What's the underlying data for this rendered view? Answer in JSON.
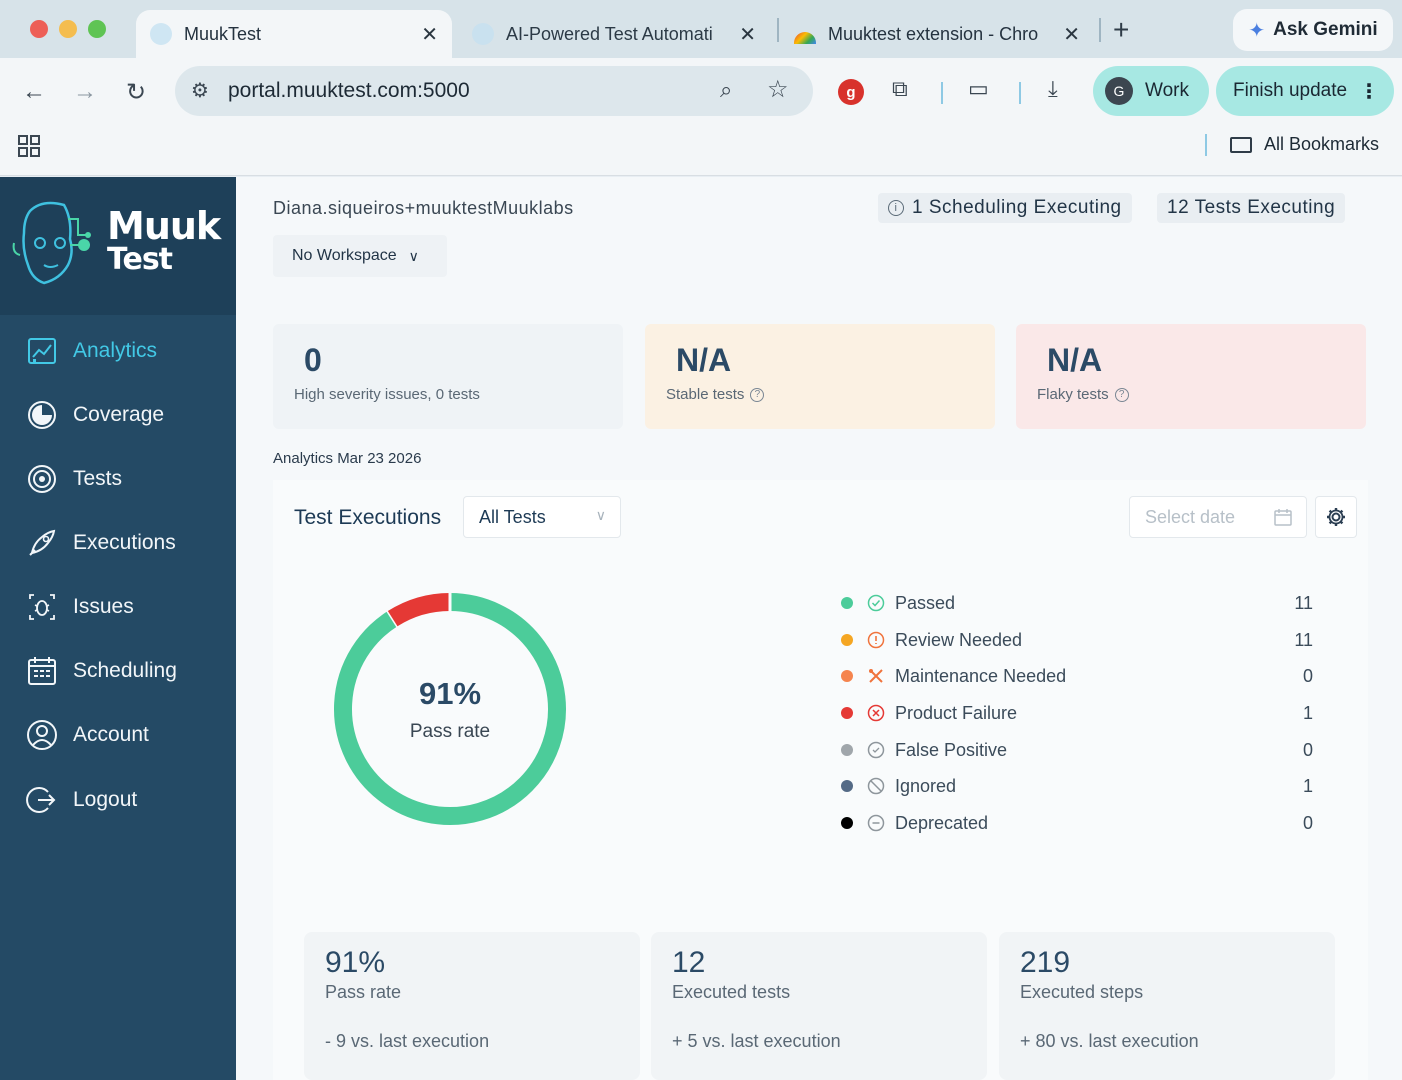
{
  "browser": {
    "tabs": [
      {
        "title": "MuukTest"
      },
      {
        "title": "AI-Powered Test Automati"
      },
      {
        "title": "Muuktest extension - Chro"
      }
    ],
    "ask_gemini": "Ask Gemini",
    "url": "portal.muuktest.com:5000",
    "profile_initial": "G",
    "profile_label": "Work",
    "finish_update": "Finish update",
    "extension_badge": "g",
    "all_bookmarks": "All Bookmarks"
  },
  "sidebar": {
    "logo_line1": "Muuk",
    "logo_line2": "Test",
    "items": [
      {
        "label": "Analytics",
        "icon": "analytics-icon",
        "active": true
      },
      {
        "label": "Coverage",
        "icon": "coverage-icon",
        "active": false
      },
      {
        "label": "Tests",
        "icon": "tests-icon",
        "active": false
      },
      {
        "label": "Executions",
        "icon": "rocket-icon",
        "active": false
      },
      {
        "label": "Issues",
        "icon": "bug-icon",
        "active": false
      },
      {
        "label": "Scheduling",
        "icon": "calendar-icon",
        "active": false
      },
      {
        "label": "Account",
        "icon": "user-icon",
        "active": false
      },
      {
        "label": "Logout",
        "icon": "logout-icon",
        "active": false
      }
    ],
    "colors": {
      "bg": "#244a65",
      "active": "#42c9e6"
    }
  },
  "header": {
    "user": "Diana.siqueiros+muuktestMuuklabs",
    "scheduling_status": "1 Scheduling Executing",
    "tests_status": "12 Tests Executing",
    "workspace": "No Workspace"
  },
  "stat_cards": [
    {
      "value": "0",
      "label": "High severity issues, 0 tests",
      "help": false,
      "bg": "#eff3f6"
    },
    {
      "value": "N/A",
      "label": "Stable tests",
      "help": true,
      "bg": "#fbf1e3"
    },
    {
      "value": "N/A",
      "label": "Flaky tests",
      "help": true,
      "bg": "#fae8e8"
    }
  ],
  "analytics_date": "Analytics Mar 23 2026",
  "executions": {
    "title": "Test Executions",
    "filter": "All Tests",
    "date_placeholder": "Select date",
    "pass_rate_pct": "91%",
    "pass_rate_label": "Pass rate",
    "legend": [
      {
        "label": "Passed",
        "count": "11",
        "color": "#4ccc9a",
        "icon": "check-circle-icon"
      },
      {
        "label": "Review Needed",
        "count": "11",
        "color": "#f5a623",
        "icon": "alert-circle-icon"
      },
      {
        "label": "Maintenance Needed",
        "count": "0",
        "color": "#f5844e",
        "icon": "tools-icon"
      },
      {
        "label": "Product Failure",
        "count": "1",
        "color": "#e53935",
        "icon": "x-circle-icon"
      },
      {
        "label": "False Positive",
        "count": "0",
        "color": "#a0a6ab",
        "icon": "false-positive-icon"
      },
      {
        "label": "Ignored",
        "count": "1",
        "color": "#546a86",
        "icon": "ban-icon"
      },
      {
        "label": "Deprecated",
        "count": "0",
        "color": "#000000",
        "icon": "minus-circle-icon"
      }
    ]
  },
  "chart_data": {
    "type": "pie",
    "categories": [
      "Passed",
      "Product Failure"
    ],
    "values": [
      91,
      9
    ]
  },
  "summary_cards": [
    {
      "value": "91%",
      "label": "Pass rate",
      "delta": "- 9 vs. last execution"
    },
    {
      "value": "12",
      "label": "Executed tests",
      "delta": "+ 5 vs. last execution"
    },
    {
      "value": "219",
      "label": "Executed steps",
      "delta": "+ 80 vs. last execution"
    }
  ]
}
